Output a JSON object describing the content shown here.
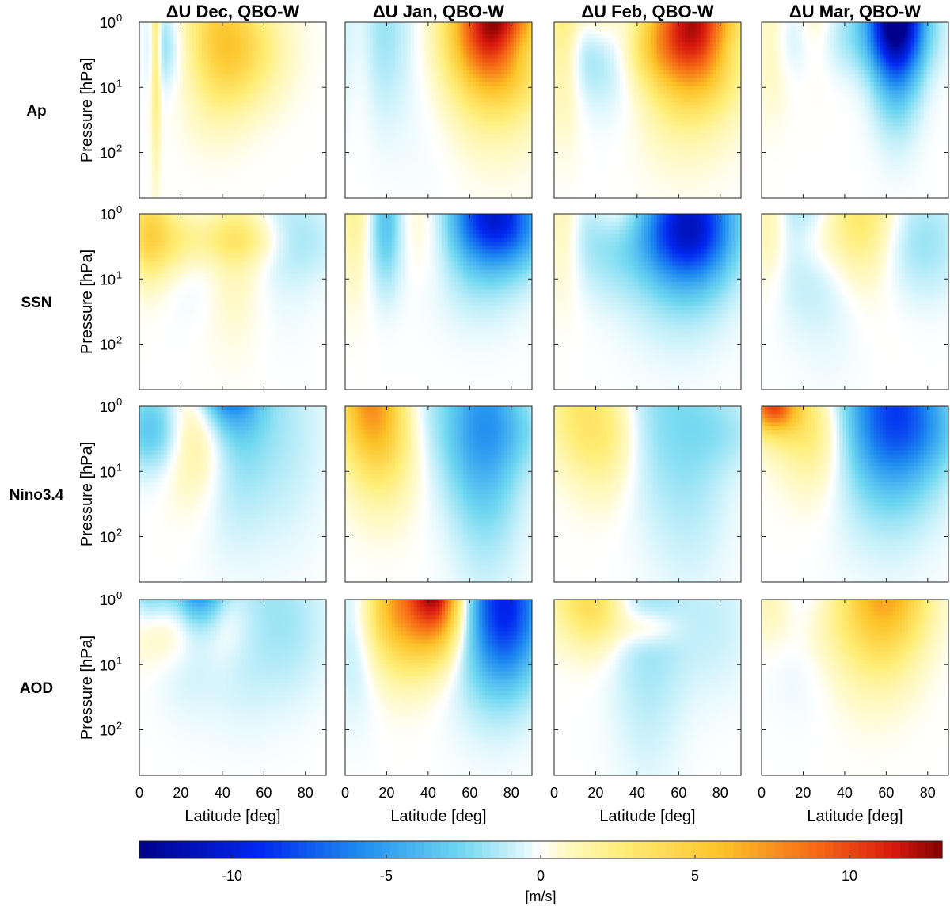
{
  "chart_data": {
    "type": "heatmap",
    "columns": [
      {
        "title": "ΔU Dec, QBO-W",
        "key": "dec"
      },
      {
        "title": "ΔU Jan, QBO-W",
        "key": "jan"
      },
      {
        "title": "ΔU Feb, QBO-W",
        "key": "feb"
      },
      {
        "title": "ΔU Mar, QBO-W",
        "key": "mar"
      }
    ],
    "rows": [
      {
        "label": "Ap",
        "key": "ap"
      },
      {
        "label": "SSN",
        "key": "ssn"
      },
      {
        "label": "Nino3.4",
        "key": "nino"
      },
      {
        "label": "AOD",
        "key": "aod"
      }
    ],
    "ylabel": "Pressure [hPa]",
    "xlabel": "Latitude [deg]",
    "x_ticks": [
      "0",
      "20",
      "40",
      "60",
      "80"
    ],
    "x_tick_values": [
      0,
      20,
      40,
      60,
      80
    ],
    "xlim": [
      0,
      90
    ],
    "y_tick_base": [
      "10",
      "10",
      "10"
    ],
    "y_tick_exp": [
      "0",
      "1",
      "2"
    ],
    "y_tick_values": [
      1,
      10,
      100
    ],
    "ylim": [
      1,
      500
    ],
    "colorbar": {
      "label": "[m/s]",
      "ticks": [
        "-10",
        "-5",
        "0",
        "5",
        "10"
      ],
      "tick_values": [
        -10,
        -5,
        0,
        5,
        10
      ],
      "range": [
        -13,
        13
      ]
    },
    "features": {
      "dec_ap": [
        [
          35,
          12,
          1.5,
          0.9,
          4.5
        ],
        [
          8,
          1.5,
          1.5,
          1.3,
          3.5
        ],
        [
          12,
          5,
          2.2,
          0.45,
          -1.8
        ],
        [
          26,
          11,
          2.6,
          0.6,
          -1.5
        ],
        [
          48,
          15,
          2.6,
          0.6,
          3.5
        ],
        [
          35,
          12,
          2.0,
          1.0,
          -0.9
        ]
      ],
      "jan_ap": [
        [
          72,
          14,
          1.0,
          0.7,
          9.5
        ],
        [
          68,
          20,
          1.8,
          1.0,
          4.0
        ],
        [
          45,
          14,
          2.0,
          1.2,
          -1.2
        ],
        [
          8,
          6,
          1.2,
          1.0,
          1.8
        ],
        [
          12,
          12,
          1.0,
          1.0,
          -2.5
        ],
        [
          85,
          10,
          2.6,
          0.3,
          -2.0
        ]
      ],
      "feb_ap": [
        [
          68,
          14,
          1.1,
          0.7,
          8.5
        ],
        [
          62,
          18,
          1.8,
          1.0,
          4.0
        ],
        [
          22,
          8,
          0.6,
          0.7,
          3.5
        ],
        [
          5,
          6,
          1.0,
          1.0,
          3.0
        ],
        [
          32,
          14,
          1.8,
          0.8,
          -2.0
        ],
        [
          18,
          10,
          2.6,
          0.5,
          -2.5
        ],
        [
          45,
          10,
          2.6,
          0.4,
          2.0
        ],
        [
          85,
          8,
          2.5,
          0.3,
          -1.2
        ]
      ],
      "mar_ap": [
        [
          65,
          8,
          0.4,
          1.0,
          -12.5
        ],
        [
          65,
          14,
          1.1,
          0.5,
          -3.0
        ],
        [
          25,
          8,
          0.9,
          0.6,
          2.5
        ],
        [
          5,
          6,
          1.1,
          0.8,
          2.0
        ],
        [
          18,
          14,
          1.4,
          0.5,
          -2.0
        ],
        [
          50,
          16,
          1.6,
          0.4,
          -1.0
        ]
      ],
      "dec_ssn": [
        [
          45,
          10,
          1.8,
          1.0,
          1.8
        ],
        [
          5,
          6,
          1.0,
          0.7,
          2.0
        ],
        [
          70,
          12,
          1.4,
          1.0,
          -0.8
        ],
        [
          4,
          12,
          2.5,
          0.4,
          2.5
        ],
        [
          22,
          12,
          2.2,
          0.4,
          2.2
        ],
        [
          48,
          14,
          2.5,
          0.25,
          2.0
        ],
        [
          30,
          12,
          1.8,
          0.7,
          -1.5
        ],
        [
          80,
          12,
          2.6,
          0.4,
          -1.0
        ]
      ],
      "jan_ssn": [
        [
          72,
          14,
          1.0,
          0.5,
          -7.5
        ],
        [
          65,
          16,
          1.8,
          0.8,
          -3.0
        ],
        [
          20,
          5,
          1.0,
          0.7,
          -3.0
        ],
        [
          5,
          6,
          1.2,
          0.8,
          2.5
        ],
        [
          40,
          14,
          1.5,
          0.6,
          1.5
        ],
        [
          15,
          12,
          2.5,
          0.6,
          -1.2
        ],
        [
          85,
          12,
          2.5,
          0.4,
          -1.2
        ]
      ],
      "feb_ssn": [
        [
          67,
          14,
          1.0,
          0.7,
          -6.5
        ],
        [
          60,
          18,
          1.8,
          1.0,
          -3.0
        ],
        [
          30,
          10,
          0.6,
          0.5,
          2.5
        ],
        [
          5,
          6,
          1.0,
          0.8,
          2.2
        ],
        [
          15,
          14,
          1.4,
          0.6,
          -1.5
        ],
        [
          62,
          15,
          2.6,
          0.4,
          -2.5
        ],
        [
          30,
          12,
          2.5,
          0.6,
          -1.2
        ]
      ],
      "mar_ssn": [
        [
          45,
          12,
          1.0,
          0.6,
          2.5
        ],
        [
          50,
          14,
          1.7,
          0.8,
          1.5
        ],
        [
          20,
          12,
          1.2,
          0.9,
          -2.0
        ],
        [
          4,
          6,
          1.2,
          0.7,
          1.8
        ],
        [
          75,
          15,
          2.6,
          0.6,
          -2.0
        ],
        [
          25,
          10,
          2.6,
          0.4,
          1.5
        ],
        [
          35,
          12,
          2.0,
          1.2,
          -1.0
        ]
      ],
      "dec_nino": [
        [
          42,
          10,
          0.3,
          0.5,
          -7.0
        ],
        [
          45,
          12,
          0.8,
          1.2,
          -3.0
        ],
        [
          28,
          12,
          2.3,
          0.7,
          3.0
        ],
        [
          8,
          10,
          1.5,
          0.6,
          -1.8
        ],
        [
          5,
          12,
          2.5,
          0.4,
          -2.0
        ],
        [
          70,
          14,
          2.0,
          1.2,
          -1.2
        ]
      ],
      "jan_nino": [
        [
          8,
          10,
          0.4,
          0.8,
          4.0
        ],
        [
          15,
          10,
          0.8,
          0.8,
          2.5
        ],
        [
          20,
          12,
          2.3,
          0.8,
          3.0
        ],
        [
          68,
          12,
          1.4,
          1.5,
          -3.5
        ],
        [
          60,
          15,
          2.2,
          0.8,
          -2.0
        ],
        [
          35,
          10,
          0.8,
          0.6,
          -1.0
        ],
        [
          85,
          12,
          2.5,
          0.4,
          -1.2
        ]
      ],
      "feb_nino": [
        [
          25,
          12,
          2.2,
          0.7,
          3.0
        ],
        [
          8,
          10,
          1.1,
          0.6,
          1.8
        ],
        [
          65,
          14,
          1.8,
          1.5,
          -2.0
        ],
        [
          42,
          12,
          1.0,
          1.0,
          -1.5
        ],
        [
          85,
          12,
          2.5,
          0.4,
          -1.0
        ]
      ],
      "mar_nino": [
        [
          65,
          16,
          1.2,
          0.8,
          -6.0
        ],
        [
          60,
          18,
          1.9,
          1.2,
          -2.5
        ],
        [
          5,
          8,
          1.0,
          0.25,
          8.0
        ],
        [
          28,
          12,
          2.2,
          0.7,
          3.0
        ],
        [
          10,
          12,
          1.6,
          0.4,
          2.0
        ],
        [
          35,
          10,
          0.8,
          0.8,
          -1.0
        ],
        [
          85,
          12,
          2.5,
          0.4,
          -1.0
        ]
      ],
      "dec_aod": [
        [
          30,
          8,
          0.3,
          0.7,
          -7.0
        ],
        [
          22,
          10,
          0.7,
          0.9,
          -3.0
        ],
        [
          5,
          8,
          0.6,
          0.5,
          -3.0
        ],
        [
          50,
          14,
          1.3,
          1.0,
          -2.0
        ],
        [
          40,
          12,
          2.0,
          0.5,
          2.0
        ],
        [
          25,
          10,
          2.2,
          0.5,
          2.0
        ],
        [
          10,
          12,
          2.5,
          0.4,
          2.0
        ],
        [
          75,
          12,
          2.4,
          0.8,
          -1.2
        ]
      ],
      "jan_aod": [
        [
          45,
          8,
          0.3,
          0.7,
          10.0
        ],
        [
          35,
          12,
          0.9,
          0.7,
          5.0
        ],
        [
          25,
          12,
          1.6,
          0.7,
          3.0
        ],
        [
          78,
          12,
          1.2,
          0.8,
          -7.0
        ],
        [
          70,
          15,
          1.8,
          1.0,
          -3.0
        ],
        [
          5,
          8,
          0.8,
          1.0,
          -3.0
        ],
        [
          10,
          12,
          1.0,
          0.6,
          2.0
        ],
        [
          50,
          12,
          2.3,
          0.5,
          1.5
        ]
      ],
      "feb_aod": [
        [
          20,
          10,
          1.1,
          0.5,
          3.0
        ],
        [
          8,
          12,
          0.9,
          0.5,
          1.5
        ],
        [
          45,
          12,
          1.8,
          1.5,
          -1.8
        ],
        [
          75,
          15,
          2.2,
          0.8,
          -1.0
        ],
        [
          45,
          10,
          2.7,
          0.2,
          2.0
        ]
      ],
      "mar_aod": [
        [
          62,
          14,
          0.5,
          0.8,
          5.0
        ],
        [
          55,
          16,
          1.3,
          0.9,
          3.0
        ],
        [
          20,
          12,
          1.0,
          0.9,
          -1.5
        ],
        [
          5,
          8,
          1.0,
          0.5,
          1.5
        ],
        [
          25,
          12,
          2.5,
          0.5,
          1.2
        ],
        [
          70,
          15,
          2.3,
          0.8,
          -0.6
        ]
      ]
    }
  }
}
